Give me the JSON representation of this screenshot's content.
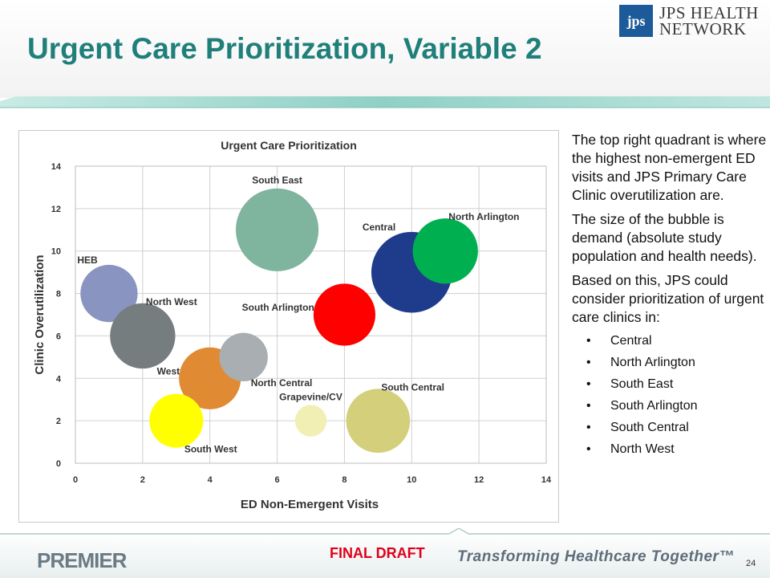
{
  "slide": {
    "title": "Urgent Care Prioritization, Variable 2",
    "page_number": "24",
    "draft_label": "FINAL DRAFT",
    "tagline": "Transforming Healthcare Together™",
    "footer_logo": "PREMIER"
  },
  "logo": {
    "mark": "jps",
    "line1": "JPS HEALTH",
    "line2": "NETWORK"
  },
  "sidebar": {
    "paragraphs": [
      "The top right quadrant is where the highest non-emergent ED visits and JPS Primary Care Clinic overutilization are.",
      "The size of the bubble is demand (absolute study population and health needs).",
      "Based on this, JPS could consider prioritization of urgent care clinics in:"
    ],
    "bullets": [
      "Central",
      "North Arlington",
      "South East",
      "South Arlington",
      "South Central",
      "North West"
    ]
  },
  "colors": {
    "title": "#1f7f7a",
    "draft": "#e0001b",
    "stripe": "#9fd4cc"
  },
  "chart_data": {
    "type": "bubble",
    "title": "Urgent Care Prioritization",
    "xlabel": "ED Non-Emergent Visits",
    "ylabel": "Clinic Overutilization",
    "xlim": [
      0,
      14
    ],
    "ylim": [
      0,
      14
    ],
    "xticks": [
      "0",
      "2",
      "4",
      "6",
      "8",
      "10",
      "12",
      "14"
    ],
    "yticks": [
      "0",
      "2",
      "4",
      "6",
      "8",
      "10",
      "12",
      "14"
    ],
    "grid": true,
    "series": [
      {
        "name": "HEB",
        "x": 1,
        "y": 8,
        "size": 0.85,
        "color": "#8a94c0",
        "label_pos": "above-left"
      },
      {
        "name": "North West",
        "x": 2,
        "y": 6,
        "size": 0.97,
        "color": "#757d7e",
        "label_pos": "above-right"
      },
      {
        "name": "West",
        "x": 4,
        "y": 4,
        "size": 0.92,
        "color": "#e08a33",
        "label_pos": "left"
      },
      {
        "name": "South West",
        "x": 3,
        "y": 2,
        "size": 0.8,
        "color": "#ffff00",
        "label_pos": "below-right"
      },
      {
        "name": "North Central",
        "x": 5,
        "y": 5,
        "size": 0.72,
        "color": "#a8aeb1",
        "label_pos": "below-right"
      },
      {
        "name": "South East",
        "x": 6,
        "y": 11,
        "size": 1.23,
        "color": "#7fb49e",
        "label_pos": "above"
      },
      {
        "name": "South Arlington",
        "x": 8,
        "y": 7,
        "size": 0.92,
        "color": "#ff0000",
        "label_pos": "left"
      },
      {
        "name": "Grapevine/CV",
        "x": 7,
        "y": 2,
        "size": 0.47,
        "color": "#f1efb3",
        "label_pos": "above"
      },
      {
        "name": "South Central",
        "x": 9,
        "y": 2,
        "size": 0.95,
        "color": "#d4cf7a",
        "label_pos": "above-right"
      },
      {
        "name": "Central",
        "x": 10,
        "y": 9,
        "size": 1.2,
        "color": "#1f3c8c",
        "label_pos": "above-left"
      },
      {
        "name": "North Arlington",
        "x": 11,
        "y": 10,
        "size": 0.97,
        "color": "#00b050",
        "label_pos": "above-right"
      }
    ]
  }
}
